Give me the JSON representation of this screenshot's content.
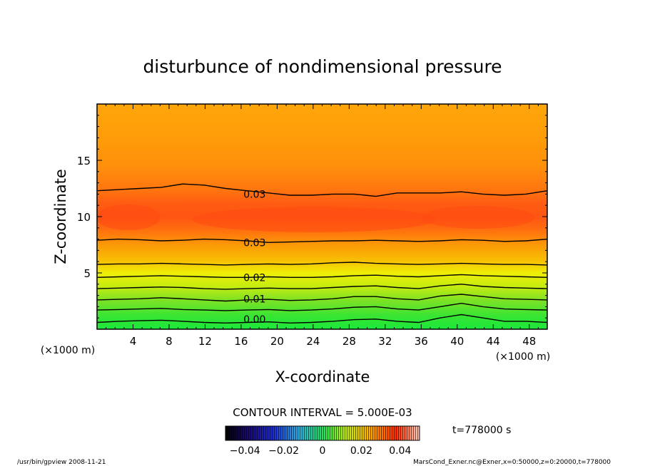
{
  "chart_data": {
    "type": "contour",
    "title": "disturbunce of nondimensional pressure",
    "xlabel": "X-coordinate",
    "ylabel": "Z-coordinate",
    "x_unit": "(×1000 m)",
    "y_unit": "(×1000 m)",
    "xlim": [
      0,
      50
    ],
    "ylim": [
      0,
      20
    ],
    "x_ticks": [
      4,
      8,
      12,
      16,
      20,
      24,
      28,
      32,
      36,
      40,
      44,
      48
    ],
    "y_ticks": [
      5,
      10,
      15
    ],
    "contour_labels": [
      {
        "text": "0.03",
        "x": 17.5,
        "z": 12.0
      },
      {
        "text": "0.03",
        "x": 17.5,
        "z": 7.7
      },
      {
        "text": "0.02",
        "x": 17.5,
        "z": 4.6
      },
      {
        "text": "0.01",
        "x": 17.5,
        "z": 2.7
      },
      {
        "text": "0.00",
        "x": 17.5,
        "z": 0.9
      }
    ],
    "contours": [
      {
        "level": 0.0,
        "z": [
          0.6,
          0.7,
          0.75,
          0.8,
          0.7,
          0.6,
          0.55,
          0.6,
          0.65,
          0.55,
          0.6,
          0.7,
          0.85,
          0.9,
          0.7,
          0.6,
          1.0,
          1.3,
          1.0,
          0.7,
          0.7,
          0.6
        ]
      },
      {
        "level": 0.005,
        "z": [
          1.7,
          1.75,
          1.8,
          1.85,
          1.75,
          1.7,
          1.65,
          1.7,
          1.75,
          1.65,
          1.7,
          1.8,
          1.95,
          2.0,
          1.8,
          1.7,
          2.0,
          2.3,
          2.0,
          1.8,
          1.75,
          1.7
        ]
      },
      {
        "level": 0.01,
        "z": [
          2.6,
          2.65,
          2.7,
          2.8,
          2.7,
          2.6,
          2.5,
          2.6,
          2.65,
          2.55,
          2.6,
          2.7,
          2.9,
          2.9,
          2.7,
          2.6,
          2.95,
          3.1,
          2.9,
          2.7,
          2.65,
          2.6
        ]
      },
      {
        "level": 0.015,
        "z": [
          3.6,
          3.65,
          3.7,
          3.75,
          3.7,
          3.6,
          3.55,
          3.6,
          3.65,
          3.6,
          3.6,
          3.7,
          3.8,
          3.85,
          3.7,
          3.6,
          3.85,
          4.0,
          3.8,
          3.7,
          3.65,
          3.6
        ]
      },
      {
        "level": 0.02,
        "z": [
          4.6,
          4.65,
          4.7,
          4.75,
          4.7,
          4.65,
          4.6,
          4.6,
          4.65,
          4.6,
          4.6,
          4.65,
          4.75,
          4.8,
          4.7,
          4.65,
          4.75,
          4.85,
          4.75,
          4.7,
          4.65,
          4.6
        ]
      },
      {
        "level": 0.025,
        "z": [
          5.75,
          5.8,
          5.8,
          5.85,
          5.8,
          5.75,
          5.7,
          5.75,
          5.8,
          5.75,
          5.8,
          5.9,
          5.95,
          5.85,
          5.8,
          5.75,
          5.8,
          5.85,
          5.8,
          5.75,
          5.75,
          5.7
        ]
      },
      {
        "level": 0.03,
        "z": [
          7.9,
          8.0,
          7.95,
          7.85,
          7.9,
          8.0,
          7.95,
          7.85,
          7.7,
          7.75,
          7.8,
          7.85,
          7.85,
          7.9,
          7.85,
          7.8,
          7.85,
          7.95,
          7.9,
          7.8,
          7.85,
          8.0
        ]
      },
      {
        "level": 0.03,
        "z": [
          12.3,
          12.4,
          12.5,
          12.6,
          12.9,
          12.8,
          12.5,
          12.3,
          12.1,
          11.9,
          11.9,
          12.0,
          12.0,
          11.8,
          12.1,
          12.1,
          12.1,
          12.2,
          12.0,
          11.9,
          12.0,
          12.3
        ]
      }
    ],
    "colorbar": {
      "ticks": [
        "−0.04",
        "−0.02",
        "0",
        "0.02",
        "0.04"
      ],
      "range": [
        -0.05,
        0.05
      ]
    },
    "contour_interval_label": "CONTOUR INTERVAL = 5.000E-03",
    "time_label": "t=778000  s"
  },
  "footer": {
    "left": "/usr/bin/gpview   2008-11-21",
    "right": "MarsCond_Exner.nc@Exner,x=0:50000,z=0:20000,t=778000"
  },
  "colors": {
    "low": "#22e23a",
    "mid": "#f2f200",
    "high": "#ff8a00",
    "peak": "#ff4a12",
    "line": "#000000"
  }
}
